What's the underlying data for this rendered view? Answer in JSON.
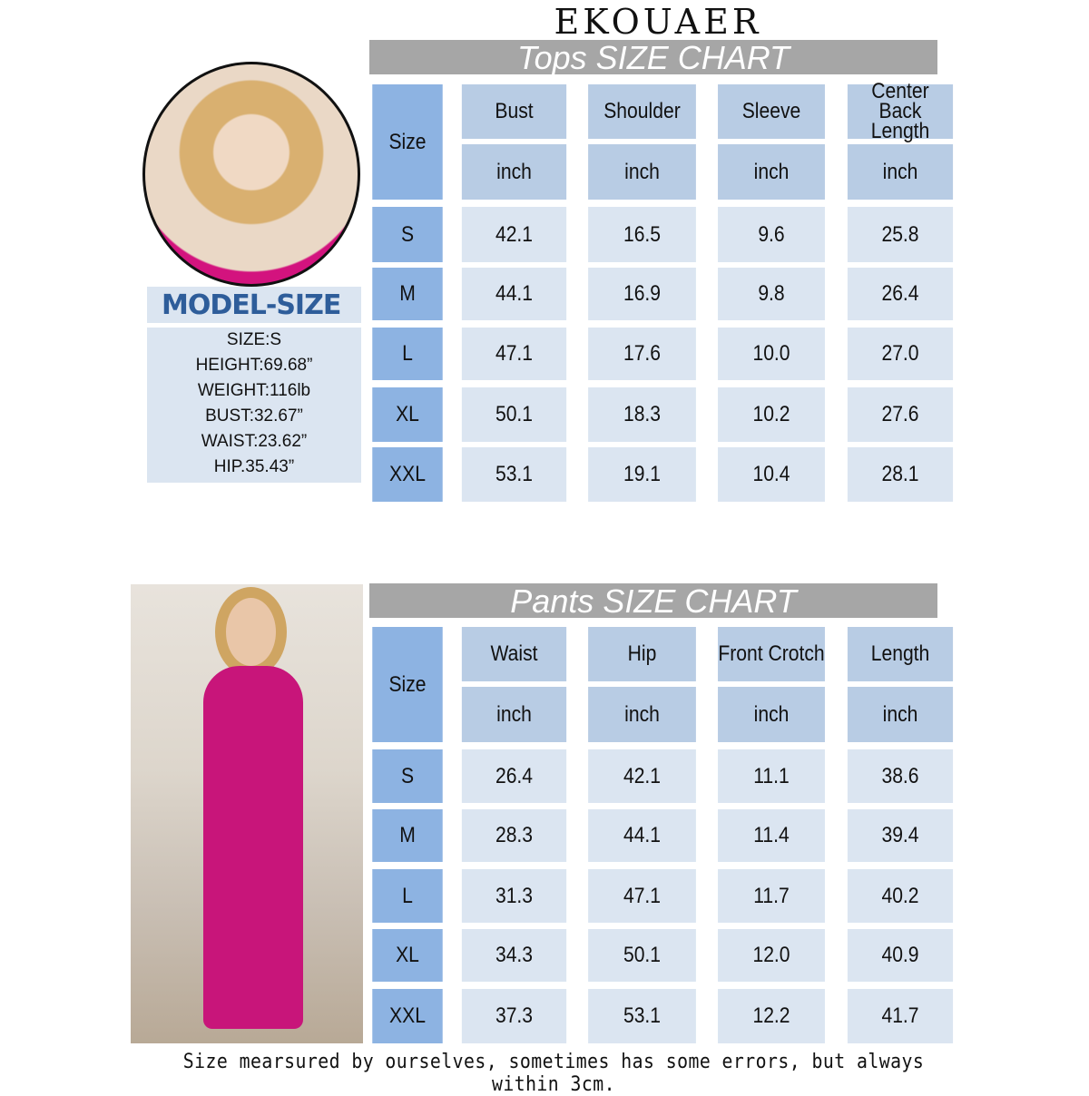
{
  "brand": "EKOUAER",
  "tops": {
    "title": "Tops SIZE CHART",
    "size_label": "Size",
    "columns": [
      "Bust",
      "Shoulder",
      "Sleeve",
      "Center Back Length"
    ],
    "unit": "inch",
    "rows": [
      {
        "size": "S",
        "values": [
          "42.1",
          "16.5",
          "9.6",
          "25.8"
        ]
      },
      {
        "size": "M",
        "values": [
          "44.1",
          "16.9",
          "9.8",
          "26.4"
        ]
      },
      {
        "size": "L",
        "values": [
          "47.1",
          "17.6",
          "10.0",
          "27.0"
        ]
      },
      {
        "size": "XL",
        "values": [
          "50.1",
          "18.3",
          "10.2",
          "27.6"
        ]
      },
      {
        "size": "XXL",
        "values": [
          "53.1",
          "19.1",
          "10.4",
          "28.1"
        ]
      }
    ]
  },
  "pants": {
    "title": "Pants SIZE CHART",
    "size_label": "Size",
    "columns": [
      "Waist",
      "Hip",
      "Front Crotch",
      "Length"
    ],
    "unit": "inch",
    "rows": [
      {
        "size": "S",
        "values": [
          "26.4",
          "42.1",
          "11.1",
          "38.6"
        ]
      },
      {
        "size": "M",
        "values": [
          "28.3",
          "44.1",
          "11.4",
          "39.4"
        ]
      },
      {
        "size": "L",
        "values": [
          "31.3",
          "47.1",
          "11.7",
          "40.2"
        ]
      },
      {
        "size": "XL",
        "values": [
          "34.3",
          "50.1",
          "12.0",
          "40.9"
        ]
      },
      {
        "size": "XXL",
        "values": [
          "37.3",
          "53.1",
          "12.2",
          "41.7"
        ]
      }
    ]
  },
  "model": {
    "title": "MODEL-SIZE",
    "lines": [
      "SIZE:S",
      "HEIGHT:69.68”",
      "WEIGHT:116lb",
      "BUST:32.67”",
      "WAIST:23.62”",
      "HIP.35.43”"
    ]
  },
  "footer": "Size mearsured by ourselves, sometimes has some errors, but always within 3cm.",
  "colors": {
    "size_column": "#8db3e2",
    "header": "#b8cce4",
    "data": "#dbe5f1",
    "title_bar": "#a6a6a6",
    "model_title": "#2e5d9a",
    "garment": "#c8157a"
  }
}
